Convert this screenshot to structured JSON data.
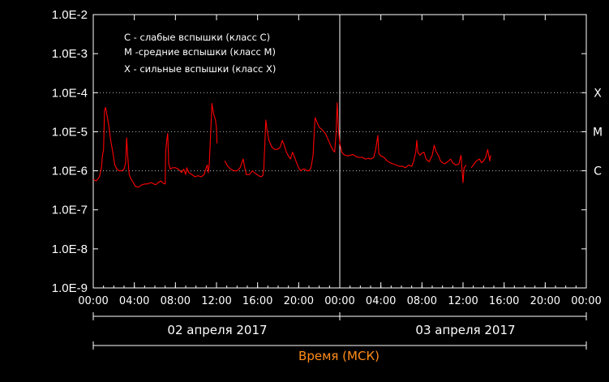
{
  "chart_data": {
    "type": "line",
    "title": "",
    "xlabel": "Время (МСК)",
    "ylabel": "",
    "y_scale": "log",
    "ylim": [
      1e-09,
      0.01
    ],
    "xlim_hours": [
      0,
      48
    ],
    "y_ticks": [
      "1.0E-2",
      "1.0E-3",
      "1.0E-4",
      "1.0E-5",
      "1.0E-6",
      "1.0E-7",
      "1.0E-8",
      "1.0E-9"
    ],
    "x_ticks": [
      "00:00",
      "04:00",
      "08:00",
      "12:00",
      "16:00",
      "20:00",
      "00:00",
      "04:00",
      "08:00",
      "12:00",
      "16:00",
      "20:00",
      "00:00"
    ],
    "dates": [
      "02 апреля 2017",
      "03 апреля 2017"
    ],
    "legend": [
      "C - слабые вспышки (класс С)",
      "M -средние вспышки (класс М)",
      "X - сильные вспышки (класс Х)"
    ],
    "flare_classes": [
      {
        "label": "X",
        "value": 0.0001
      },
      {
        "label": "M",
        "value": 1e-05
      },
      {
        "label": "C",
        "value": 1e-06
      }
    ],
    "grid": "dotted at class thresholds",
    "day_divider_hour": 24,
    "series_color": "#ff0000",
    "series": [
      {
        "segments": [
          [
            [
              0.0,
              6e-07
            ],
            [
              0.3,
              5.5e-07
            ],
            [
              0.6,
              7e-07
            ],
            [
              0.8,
              1.2e-06
            ],
            [
              0.9,
              2.5e-06
            ],
            [
              1.0,
              3.5e-06
            ],
            [
              1.1,
              3.4e-05
            ],
            [
              1.2,
              4.2e-05
            ],
            [
              1.3,
              3e-05
            ],
            [
              1.5,
              1.5e-05
            ],
            [
              1.7,
              6e-06
            ],
            [
              1.9,
              3e-06
            ],
            [
              2.1,
              1.4e-06
            ],
            [
              2.3,
              1.1e-06
            ],
            [
              2.5,
              1e-06
            ],
            [
              2.8,
              1e-06
            ],
            [
              3.0,
              1.1e-06
            ],
            [
              3.15,
              1.6e-06
            ],
            [
              3.25,
              7e-06
            ],
            [
              3.35,
              2.5e-06
            ],
            [
              3.5,
              8e-07
            ],
            [
              3.7,
              6e-07
            ],
            [
              3.9,
              5e-07
            ],
            [
              4.1,
              4e-07
            ],
            [
              4.4,
              3.8e-07
            ],
            [
              4.7,
              4.3e-07
            ],
            [
              5.0,
              4.6e-07
            ],
            [
              5.3,
              4.6e-07
            ],
            [
              5.6,
              5e-07
            ],
            [
              5.9,
              4.6e-07
            ],
            [
              6.1,
              4.4e-07
            ],
            [
              6.3,
              5e-07
            ],
            [
              6.6,
              5.5e-07
            ],
            [
              6.8,
              4.8e-07
            ],
            [
              7.0,
              4.6e-07
            ],
            [
              7.05,
              3e-06
            ],
            [
              7.15,
              6e-06
            ],
            [
              7.25,
              9e-06
            ],
            [
              7.35,
              1.5e-06
            ],
            [
              7.5,
              1.1e-06
            ],
            [
              7.7,
              1.2e-06
            ],
            [
              8.0,
              1.2e-06
            ],
            [
              8.3,
              1.1e-06
            ],
            [
              8.6,
              9e-07
            ],
            [
              8.8,
              1.1e-06
            ],
            [
              9.0,
              8e-07
            ],
            [
              9.1,
              1.2e-06
            ],
            [
              9.3,
              9e-07
            ],
            [
              9.6,
              8e-07
            ],
            [
              9.9,
              7e-07
            ],
            [
              10.2,
              7.5e-07
            ],
            [
              10.5,
              7e-07
            ],
            [
              10.8,
              8e-07
            ],
            [
              11.0,
              1.2e-06
            ],
            [
              11.1,
              1.4e-06
            ],
            [
              11.2,
              9e-07
            ],
            [
              11.3,
              1.5e-06
            ],
            [
              11.5,
              2.5e-05
            ],
            [
              11.55,
              5.3e-05
            ],
            [
              11.7,
              3e-05
            ],
            [
              11.9,
              2e-05
            ],
            [
              12.0,
              1.2e-05
            ],
            [
              12.05,
              5e-06
            ]
          ],
          [
            [
              12.8,
              1.8e-06
            ],
            [
              13.1,
              1.3e-06
            ],
            [
              13.4,
              1.1e-06
            ],
            [
              13.7,
              1e-06
            ],
            [
              14.0,
              1e-06
            ],
            [
              14.3,
              1.2e-06
            ],
            [
              14.6,
              2e-06
            ],
            [
              14.7,
              1.4e-06
            ],
            [
              14.9,
              8e-07
            ],
            [
              15.2,
              8e-07
            ],
            [
              15.5,
              1e-06
            ],
            [
              15.8,
              8.5e-07
            ],
            [
              16.1,
              7.5e-07
            ],
            [
              16.3,
              7e-07
            ],
            [
              16.5,
              7.5e-07
            ],
            [
              16.6,
              1.1e-06
            ],
            [
              16.8,
              2e-05
            ],
            [
              16.9,
              1.2e-05
            ],
            [
              17.1,
              6e-06
            ],
            [
              17.4,
              4e-06
            ],
            [
              17.7,
              3.5e-06
            ],
            [
              18.0,
              3.6e-06
            ],
            [
              18.2,
              4e-06
            ],
            [
              18.4,
              6e-06
            ],
            [
              18.6,
              4.5e-06
            ],
            [
              18.8,
              3e-06
            ],
            [
              19.0,
              2.4e-06
            ],
            [
              19.2,
              2e-06
            ],
            [
              19.4,
              3e-06
            ],
            [
              19.6,
              2.2e-06
            ],
            [
              19.8,
              1.6e-06
            ],
            [
              20.0,
              1.2e-06
            ],
            [
              20.2,
              1e-06
            ],
            [
              20.4,
              1.1e-06
            ],
            [
              20.6,
              1.1e-06
            ],
            [
              20.8,
              1e-06
            ],
            [
              21.0,
              1e-06
            ],
            [
              21.2,
              1.2e-06
            ],
            [
              21.4,
              2.5e-06
            ],
            [
              21.55,
              1.5e-05
            ],
            [
              21.6,
              2.3e-05
            ],
            [
              21.8,
              1.7e-05
            ],
            [
              22.0,
              1.3e-05
            ],
            [
              22.3,
              1.1e-05
            ],
            [
              22.6,
              9e-06
            ],
            [
              22.9,
              6e-06
            ],
            [
              23.1,
              4.5e-06
            ],
            [
              23.3,
              3.5e-06
            ],
            [
              23.5,
              3e-06
            ],
            [
              23.65,
              1e-05
            ],
            [
              23.75,
              5.5e-05
            ],
            [
              23.85,
              1.5e-05
            ],
            [
              24.0,
              5e-06
            ],
            [
              24.2,
              3e-06
            ],
            [
              24.4,
              2.6e-06
            ],
            [
              24.7,
              2.4e-06
            ],
            [
              25.0,
              2.5e-06
            ],
            [
              25.3,
              2.6e-06
            ],
            [
              25.6,
              2.3e-06
            ],
            [
              25.9,
              2.2e-06
            ],
            [
              26.2,
              2.2e-06
            ],
            [
              26.5,
              2e-06
            ],
            [
              26.8,
              2.1e-06
            ],
            [
              27.0,
              2e-06
            ],
            [
              27.3,
              2.2e-06
            ],
            [
              27.5,
              3.5e-06
            ],
            [
              27.7,
              8e-06
            ],
            [
              27.8,
              2.8e-06
            ],
            [
              28.0,
              2.4e-06
            ],
            [
              28.3,
              2.2e-06
            ],
            [
              28.6,
              1.8e-06
            ],
            [
              28.9,
              1.6e-06
            ],
            [
              29.2,
              1.5e-06
            ],
            [
              29.5,
              1.4e-06
            ],
            [
              29.8,
              1.3e-06
            ],
            [
              30.1,
              1.3e-06
            ],
            [
              30.4,
              1.2e-06
            ],
            [
              30.7,
              1.4e-06
            ],
            [
              31.0,
              1.3e-06
            ],
            [
              31.2,
              1.8e-06
            ],
            [
              31.4,
              3e-06
            ],
            [
              31.5,
              6e-06
            ],
            [
              31.6,
              3e-06
            ],
            [
              31.8,
              2.5e-06
            ],
            [
              32.0,
              2.8e-06
            ],
            [
              32.2,
              3e-06
            ],
            [
              32.4,
              2e-06
            ],
            [
              32.7,
              1.7e-06
            ],
            [
              33.0,
              2.5e-06
            ],
            [
              33.2,
              4.5e-06
            ],
            [
              33.4,
              3e-06
            ],
            [
              33.6,
              2.5e-06
            ],
            [
              33.8,
              1.8e-06
            ],
            [
              34.0,
              1.6e-06
            ],
            [
              34.2,
              1.5e-06
            ],
            [
              34.5,
              1.7e-06
            ],
            [
              34.8,
              2e-06
            ],
            [
              35.0,
              1.6e-06
            ],
            [
              35.3,
              1.4e-06
            ],
            [
              35.6,
              1.5e-06
            ],
            [
              35.8,
              2.5e-06
            ],
            [
              35.9,
              1.1e-06
            ],
            [
              36.0,
              5e-07
            ],
            [
              36.1,
              1.2e-06
            ],
            [
              36.3,
              1.4e-06
            ]
          ],
          [
            [
              36.8,
              1.2e-06
            ],
            [
              37.0,
              1.4e-06
            ],
            [
              37.3,
              1.8e-06
            ],
            [
              37.6,
              2e-06
            ],
            [
              37.8,
              1.6e-06
            ],
            [
              38.0,
              1.8e-06
            ],
            [
              38.2,
              2.2e-06
            ],
            [
              38.4,
              3.5e-06
            ],
            [
              38.5,
              2.5e-06
            ],
            [
              38.6,
              1.8e-06
            ],
            [
              38.7,
              2.5e-06
            ]
          ]
        ]
      }
    ]
  }
}
